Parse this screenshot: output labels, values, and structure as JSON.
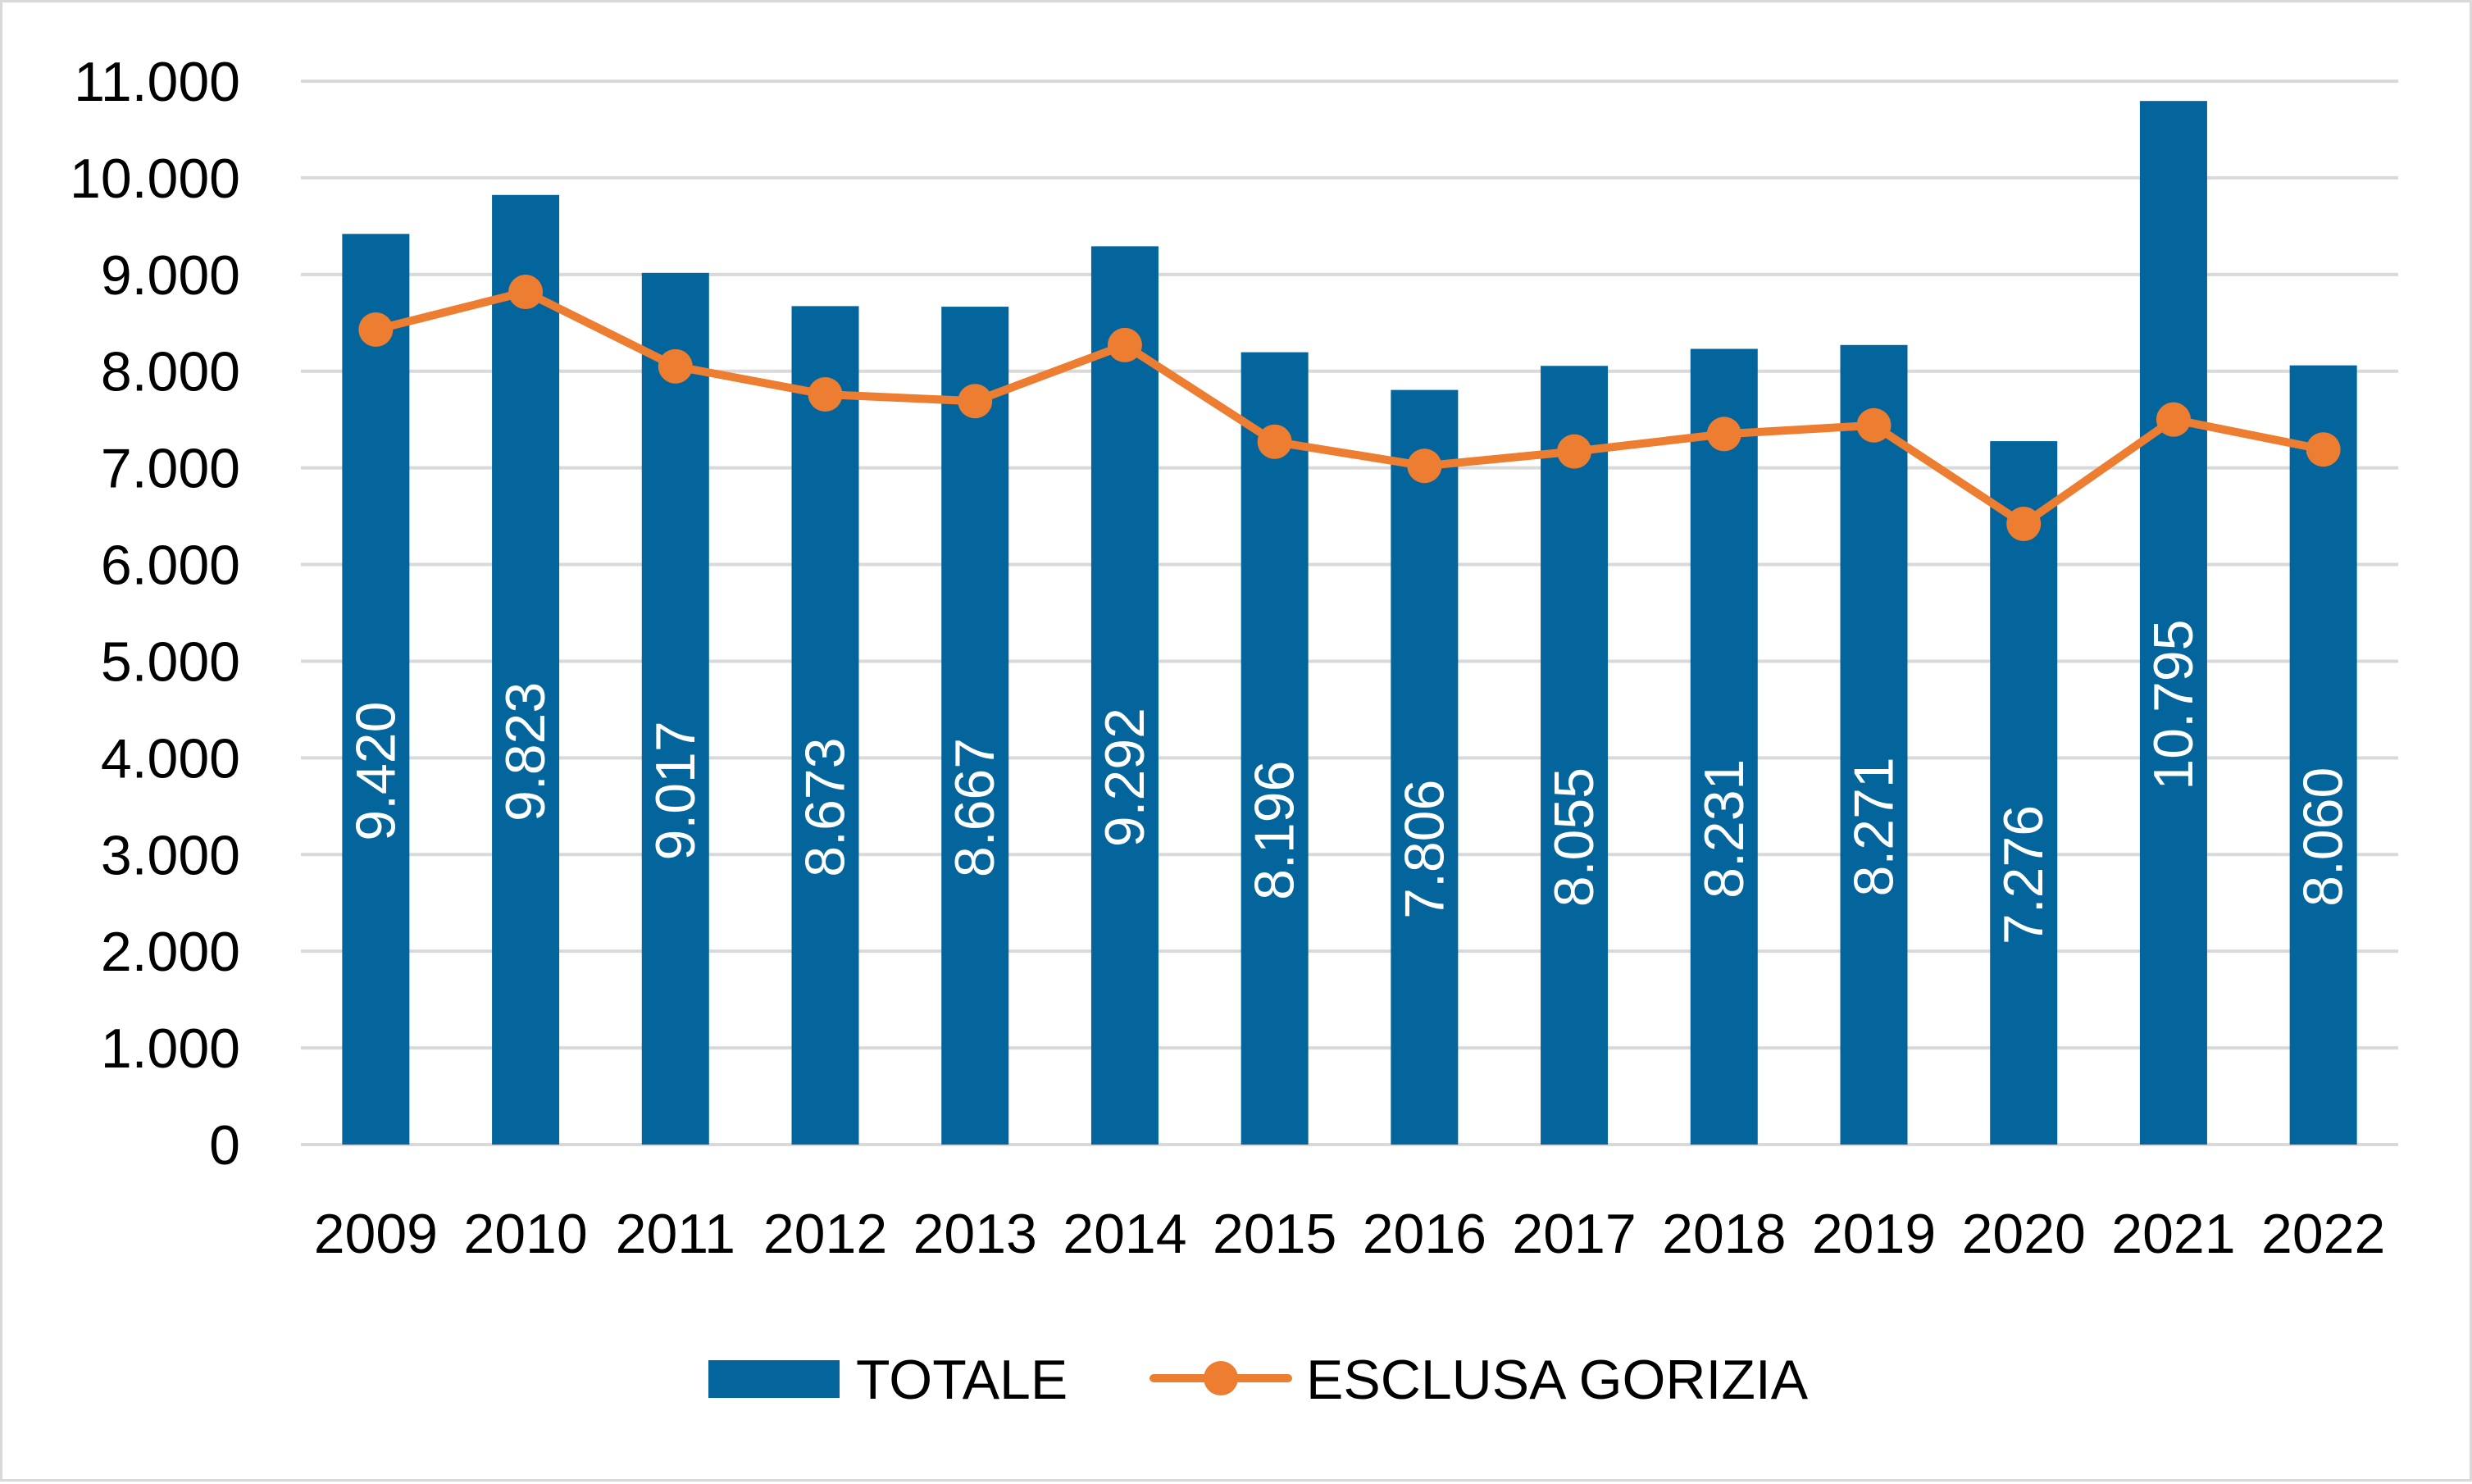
{
  "chart_data": {
    "type": "bar",
    "title": "",
    "xlabel": "",
    "ylabel": "",
    "categories": [
      "2009",
      "2010",
      "2011",
      "2012",
      "2013",
      "2014",
      "2015",
      "2016",
      "2017",
      "2018",
      "2019",
      "2020",
      "2021",
      "2022"
    ],
    "ylim": [
      0,
      11000
    ],
    "yticks": [
      0,
      1000,
      2000,
      3000,
      4000,
      5000,
      6000,
      7000,
      8000,
      9000,
      10000,
      11000
    ],
    "ytick_labels": [
      "0",
      "1.000",
      "2.000",
      "3.000",
      "4.000",
      "5.000",
      "6.000",
      "7.000",
      "8.000",
      "9.000",
      "10.000",
      "11.000"
    ],
    "grid": true,
    "legend_position": "bottom",
    "series": [
      {
        "name": "TOTALE",
        "type": "bar",
        "color": "#03659c",
        "values": [
          9420,
          9823,
          9017,
          8673,
          8667,
          9292,
          8196,
          7806,
          8055,
          8231,
          8271,
          7276,
          10795,
          8060
        ],
        "labels": [
          "9.420",
          "9.823",
          "9.017",
          "8.673",
          "8.667",
          "9.292",
          "8.196",
          "7.806",
          "8.055",
          "8.231",
          "8.271",
          "7.276",
          "10.795",
          "8.060"
        ]
      },
      {
        "name": "ESCLUSA GORIZIA",
        "type": "line",
        "color": "#ed7d31",
        "values": [
          8430,
          8820,
          8050,
          7760,
          7690,
          8270,
          7270,
          7020,
          7170,
          7350,
          7440,
          6420,
          7500,
          7190
        ]
      }
    ]
  }
}
